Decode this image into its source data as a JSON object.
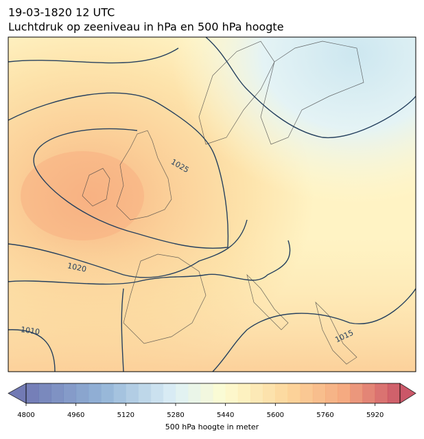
{
  "header": {
    "title": "19-03-1820 12 UTC",
    "subtitle": "Luchtdruk op zeeniveau in hPa en 500 hPa hoogte"
  },
  "map": {
    "contour_labels": [
      "1025",
      "1020",
      "1010",
      "1015"
    ]
  },
  "colorbar": {
    "lim": [
      4800,
      6000
    ],
    "ticks": [
      4800,
      4960,
      5120,
      5280,
      5440,
      5600,
      5760,
      5920
    ],
    "level_step": 40,
    "label": "500 hPa hoogte in meter"
  }
}
